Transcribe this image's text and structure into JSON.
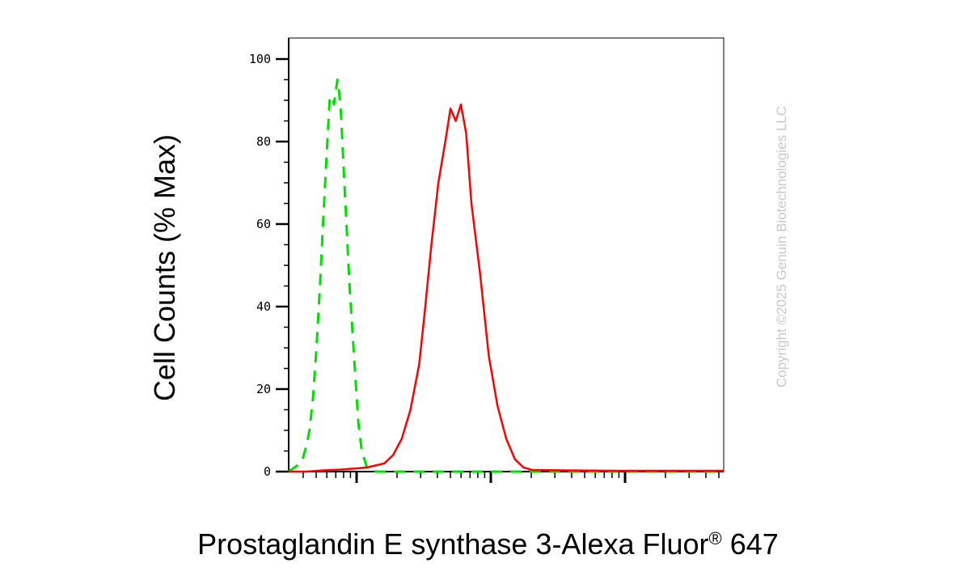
{
  "chart_data": {
    "type": "line",
    "title": "",
    "xlabel_main": "Prostaglandin E synthase 3-Alexa Fluor",
    "xlabel_sup": "®",
    "xlabel_tail": " 647",
    "ylabel": "Cell Counts (% Max)",
    "ylim": [
      0,
      100
    ],
    "yticks": [
      "0",
      "20",
      "40",
      "60",
      "80",
      "100"
    ],
    "xscale": "log",
    "xlim": [
      0.1,
      2.6
    ],
    "grid": false,
    "legend": "none",
    "series": [
      {
        "color": "#00e000",
        "style": "dashed",
        "points": [
          [
            0.1,
            0
          ],
          [
            0.15,
            1.5
          ],
          [
            0.18,
            3
          ],
          [
            0.2,
            6
          ],
          [
            0.22,
            10
          ],
          [
            0.24,
            18
          ],
          [
            0.26,
            30
          ],
          [
            0.28,
            45
          ],
          [
            0.3,
            62
          ],
          [
            0.32,
            78
          ],
          [
            0.335,
            90
          ],
          [
            0.35,
            91
          ],
          [
            0.36,
            89
          ],
          [
            0.37,
            92
          ],
          [
            0.38,
            95
          ],
          [
            0.39,
            92
          ],
          [
            0.4,
            87
          ],
          [
            0.42,
            70
          ],
          [
            0.45,
            45
          ],
          [
            0.48,
            25
          ],
          [
            0.5,
            12
          ],
          [
            0.52,
            5
          ],
          [
            0.55,
            1
          ],
          [
            0.6,
            0
          ],
          [
            0.8,
            0
          ],
          [
            1.0,
            0
          ],
          [
            1.2,
            0
          ],
          [
            1.5,
            0
          ],
          [
            2.0,
            0
          ],
          [
            2.6,
            0
          ]
        ]
      },
      {
        "color": "#ff0000",
        "style": "solid",
        "points": [
          [
            0.1,
            0
          ],
          [
            0.2,
            0
          ],
          [
            0.3,
            0.3
          ],
          [
            0.4,
            0.5
          ],
          [
            0.5,
            0.8
          ],
          [
            0.55,
            1
          ],
          [
            0.6,
            1.5
          ],
          [
            0.65,
            2
          ],
          [
            0.7,
            4
          ],
          [
            0.75,
            8
          ],
          [
            0.8,
            15
          ],
          [
            0.85,
            26
          ],
          [
            0.88,
            38
          ],
          [
            0.92,
            55
          ],
          [
            0.96,
            70
          ],
          [
            1.0,
            80
          ],
          [
            1.03,
            88
          ],
          [
            1.06,
            85
          ],
          [
            1.09,
            89
          ],
          [
            1.12,
            82
          ],
          [
            1.15,
            65
          ],
          [
            1.2,
            48
          ],
          [
            1.25,
            28
          ],
          [
            1.3,
            16
          ],
          [
            1.35,
            8
          ],
          [
            1.4,
            3
          ],
          [
            1.45,
            1
          ],
          [
            1.5,
            0.4
          ],
          [
            1.7,
            0.3
          ],
          [
            2.0,
            0.2
          ],
          [
            2.6,
            0.2
          ]
        ]
      }
    ]
  },
  "copyright": "Copyright ©2025 Genuin Biotechnologies LLC"
}
